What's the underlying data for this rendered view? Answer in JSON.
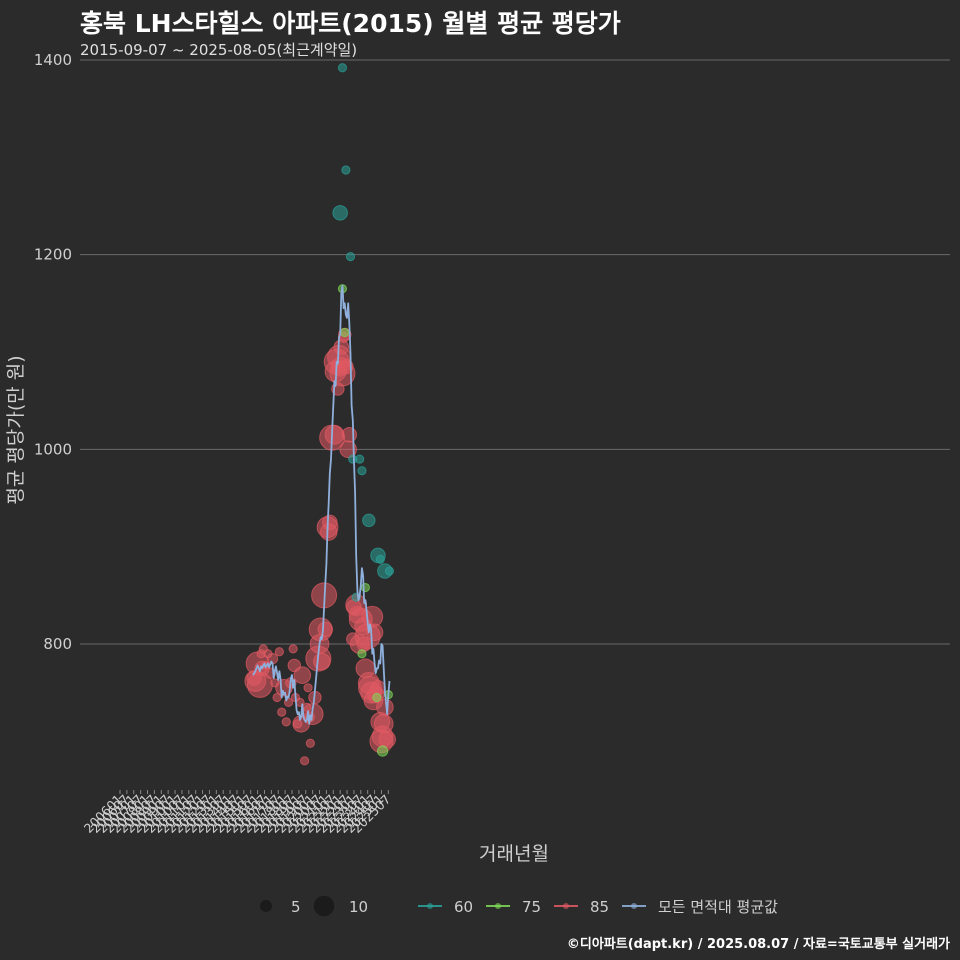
{
  "title": "홍북 LH스타힐스 아파트(2015) 월별 평균 평당가",
  "subtitle": "2015-09-07 ~ 2025-08-05(최근계약일)",
  "footer": "©디아파트(dapt.kr) / 2025.08.07 / 자료=국토교통부 실거래가",
  "colors": {
    "background": "#2b2b2b",
    "grid": "#6a6a6a",
    "s60": "#2aa198",
    "s75": "#7ed957",
    "s85": "#e05a63",
    "avg": "#8fb0dc"
  },
  "chart_data": {
    "type": "scatter",
    "xlabel": "거래년월",
    "ylabel": "평균 평당가(만 원)",
    "ylim": [
      650,
      1400
    ],
    "yticks": [
      800,
      1000,
      1200,
      1400
    ],
    "xticks": [
      "200601",
      "200607",
      "200701",
      "200707",
      "200801",
      "200807",
      "200901",
      "200907",
      "201001",
      "201007",
      "201101",
      "201107",
      "201201",
      "201207",
      "201301",
      "201307",
      "201401",
      "201407",
      "201501",
      "201507",
      "201601",
      "201607",
      "201701",
      "201707",
      "201801",
      "201807",
      "201901",
      "201907",
      "202001",
      "202007",
      "202101",
      "202107",
      "202201",
      "202207",
      "202301",
      "202307",
      "202401",
      "202407",
      "202501",
      "202507"
    ],
    "size_legend": [
      {
        "label": "5",
        "size": 5
      },
      {
        "label": "10",
        "size": 10
      }
    ],
    "color_legend": [
      {
        "label": "60",
        "key": "s60"
      },
      {
        "label": "75",
        "key": "s75"
      },
      {
        "label": "85",
        "key": "s85"
      },
      {
        "label": "모든 면적대 평균값",
        "key": "avg"
      }
    ],
    "series": [
      {
        "name": "85",
        "key": "s85",
        "points": [
          [
            "2015-10",
            765,
            5
          ],
          [
            "2015-11",
            762,
            8
          ],
          [
            "2016-01",
            780,
            9
          ],
          [
            "2016-03",
            758,
            10
          ],
          [
            "2016-04",
            790,
            2
          ],
          [
            "2016-05",
            775,
            5
          ],
          [
            "2016-06",
            795,
            2
          ],
          [
            "2016-08",
            778,
            2
          ],
          [
            "2016-10",
            790,
            2
          ],
          [
            "2016-12",
            770,
            3
          ],
          [
            "2017-02",
            785,
            3
          ],
          [
            "2017-04",
            760,
            2
          ],
          [
            "2017-06",
            745,
            2
          ],
          [
            "2017-08",
            792,
            2
          ],
          [
            "2017-10",
            730,
            2
          ],
          [
            "2017-12",
            755,
            6
          ],
          [
            "2018-02",
            720,
            2
          ],
          [
            "2018-04",
            740,
            2
          ],
          [
            "2018-06",
            760,
            3
          ],
          [
            "2018-08",
            795,
            2
          ],
          [
            "2018-09",
            778,
            4
          ],
          [
            "2018-10",
            745,
            2
          ],
          [
            "2018-12",
            718,
            2
          ],
          [
            "2019-02",
            740,
            2
          ],
          [
            "2019-03",
            718,
            6
          ],
          [
            "2019-04",
            768,
            6
          ],
          [
            "2019-06",
            680,
            2
          ],
          [
            "2019-08",
            735,
            2
          ],
          [
            "2019-09",
            755,
            2
          ],
          [
            "2019-10",
            725,
            3
          ],
          [
            "2019-11",
            698,
            2
          ],
          [
            "2020-01",
            728,
            8
          ],
          [
            "2020-03",
            745,
            4
          ],
          [
            "2020-06",
            785,
            10
          ],
          [
            "2020-07",
            800,
            7
          ],
          [
            "2020-08",
            815,
            9
          ],
          [
            "2020-09",
            782,
            6
          ],
          [
            "2020-11",
            850,
            10
          ],
          [
            "2020-12",
            815,
            5
          ],
          [
            "2021-02",
            920,
            8
          ],
          [
            "2021-03",
            915,
            6
          ],
          [
            "2021-04",
            925,
            5
          ],
          [
            "2021-06",
            1012,
            10
          ],
          [
            "2021-08",
            1015,
            7
          ],
          [
            "2021-09",
            1080,
            8
          ],
          [
            "2021-10",
            1090,
            10
          ],
          [
            "2021-11",
            1062,
            4
          ],
          [
            "2021-12",
            1095,
            9
          ],
          [
            "2022-01",
            1085,
            7
          ],
          [
            "2022-02",
            1105,
            5
          ],
          [
            "2022-03",
            1078,
            10
          ],
          [
            "2022-04",
            1115,
            3
          ],
          [
            "2022-05",
            1118,
            4
          ],
          [
            "2022-06",
            1085,
            5
          ],
          [
            "2022-08",
            1000,
            6
          ],
          [
            "2022-09",
            1015,
            5
          ],
          [
            "2022-12",
            805,
            4
          ],
          [
            "2023-01",
            838,
            5
          ],
          [
            "2023-03",
            840,
            8
          ],
          [
            "2023-04",
            830,
            6
          ],
          [
            "2023-06",
            800,
            7
          ],
          [
            "2023-07",
            825,
            9
          ],
          [
            "2023-09",
            818,
            6
          ],
          [
            "2023-10",
            800,
            5
          ],
          [
            "2023-11",
            775,
            7
          ],
          [
            "2024-01",
            808,
            10
          ],
          [
            "2024-02",
            760,
            8
          ],
          [
            "2024-03",
            755,
            9
          ],
          [
            "2024-04",
            750,
            8
          ],
          [
            "2024-05",
            828,
            8
          ],
          [
            "2024-06",
            742,
            7
          ],
          [
            "2024-07",
            812,
            6
          ],
          [
            "2024-08",
            748,
            6
          ],
          [
            "2024-10",
            755,
            5
          ],
          [
            "2024-12",
            720,
            7
          ],
          [
            "2025-01",
            700,
            9
          ],
          [
            "2025-02",
            705,
            8
          ],
          [
            "2025-03",
            718,
            7
          ],
          [
            "2025-04",
            735,
            6
          ],
          [
            "2025-06",
            702,
            6
          ]
        ]
      },
      {
        "name": "75",
        "key": "s75",
        "points": [
          [
            "2022-03",
            1165,
            2
          ],
          [
            "2022-05",
            1120,
            2
          ],
          [
            "2023-08",
            790,
            2
          ],
          [
            "2023-11",
            858,
            2
          ],
          [
            "2024-09",
            745,
            2
          ],
          [
            "2025-02",
            690,
            3
          ],
          [
            "2025-07",
            748,
            2
          ]
        ]
      },
      {
        "name": "60",
        "key": "s60",
        "points": [
          [
            "2022-01",
            1243,
            5
          ],
          [
            "2022-03",
            1392,
            2
          ],
          [
            "2022-06",
            1287,
            2
          ],
          [
            "2022-10",
            1198,
            2
          ],
          [
            "2022-12",
            990,
            2
          ],
          [
            "2023-06",
            990,
            2
          ],
          [
            "2023-08",
            978,
            2
          ],
          [
            "2023-03",
            848,
            2
          ],
          [
            "2024-02",
            927,
            4
          ],
          [
            "2024-10",
            891,
            5
          ],
          [
            "2024-12",
            887,
            2
          ],
          [
            "2025-04",
            875,
            5
          ],
          [
            "2025-08",
            875,
            2
          ]
        ]
      }
    ],
    "average_line": [
      [
        "2015-09",
        768
      ],
      [
        "2015-10",
        770
      ],
      [
        "2015-11",
        772
      ],
      [
        "2015-12",
        775
      ],
      [
        "2016-01",
        778
      ],
      [
        "2016-02",
        775
      ],
      [
        "2016-03",
        772
      ],
      [
        "2016-04",
        777
      ],
      [
        "2016-05",
        775
      ],
      [
        "2016-06",
        778
      ],
      [
        "2016-07",
        780
      ],
      [
        "2016-08",
        776
      ],
      [
        "2016-09",
        778
      ],
      [
        "2016-10",
        780
      ],
      [
        "2016-11",
        776
      ],
      [
        "2016-12",
        779
      ],
      [
        "2017-01",
        782
      ],
      [
        "2017-02",
        780
      ],
      [
        "2017-03",
        765
      ],
      [
        "2017-04",
        772
      ],
      [
        "2017-05",
        777
      ],
      [
        "2017-06",
        770
      ],
      [
        "2017-07",
        763
      ],
      [
        "2017-08",
        772
      ],
      [
        "2017-09",
        764
      ],
      [
        "2017-10",
        745
      ],
      [
        "2017-11",
        752
      ],
      [
        "2017-12",
        748
      ],
      [
        "2018-01",
        750
      ],
      [
        "2018-02",
        742
      ],
      [
        "2018-03",
        746
      ],
      [
        "2018-04",
        745
      ],
      [
        "2018-05",
        752
      ],
      [
        "2018-06",
        765
      ],
      [
        "2018-07",
        768
      ],
      [
        "2018-08",
        755
      ],
      [
        "2018-09",
        763
      ],
      [
        "2018-10",
        748
      ],
      [
        "2018-11",
        732
      ],
      [
        "2018-12",
        728
      ],
      [
        "2019-01",
        730
      ],
      [
        "2019-02",
        722
      ],
      [
        "2019-03",
        725
      ],
      [
        "2019-04",
        738
      ],
      [
        "2019-05",
        725
      ],
      [
        "2019-06",
        722
      ],
      [
        "2019-07",
        720
      ],
      [
        "2019-08",
        722
      ],
      [
        "2019-09",
        731
      ],
      [
        "2019-10",
        718
      ],
      [
        "2019-11",
        727
      ],
      [
        "2019-12",
        722
      ],
      [
        "2020-01",
        733
      ],
      [
        "2020-02",
        740
      ],
      [
        "2020-03",
        752
      ],
      [
        "2020-04",
        765
      ],
      [
        "2020-05",
        778
      ],
      [
        "2020-06",
        790
      ],
      [
        "2020-07",
        800
      ],
      [
        "2020-08",
        807
      ],
      [
        "2020-09",
        805
      ],
      [
        "2020-10",
        815
      ],
      [
        "2020-11",
        838
      ],
      [
        "2020-12",
        862
      ],
      [
        "2021-01",
        882
      ],
      [
        "2021-02",
        918
      ],
      [
        "2021-03",
        945
      ],
      [
        "2021-04",
        975
      ],
      [
        "2021-05",
        990
      ],
      [
        "2021-06",
        1018
      ],
      [
        "2021-07",
        1045
      ],
      [
        "2021-08",
        1070
      ],
      [
        "2021-09",
        1065
      ],
      [
        "2021-10",
        1090
      ],
      [
        "2021-11",
        1088
      ],
      [
        "2021-12",
        1115
      ],
      [
        "2022-01",
        1118
      ],
      [
        "2022-02",
        1160
      ],
      [
        "2022-03",
        1168
      ],
      [
        "2022-04",
        1145
      ],
      [
        "2022-05",
        1150
      ],
      [
        "2022-06",
        1138
      ],
      [
        "2022-07",
        1135
      ],
      [
        "2022-08",
        1150
      ],
      [
        "2022-09",
        1130
      ],
      [
        "2022-10",
        1098
      ],
      [
        "2022-11",
        1045
      ],
      [
        "2022-12",
        1030
      ],
      [
        "2023-01",
        990
      ],
      [
        "2023-02",
        955
      ],
      [
        "2023-03",
        890
      ],
      [
        "2023-04",
        855
      ],
      [
        "2023-05",
        845
      ],
      [
        "2023-06",
        850
      ],
      [
        "2023-07",
        860
      ],
      [
        "2023-08",
        878
      ],
      [
        "2023-09",
        870
      ],
      [
        "2023-10",
        842
      ],
      [
        "2023-11",
        845
      ],
      [
        "2023-12",
        835
      ],
      [
        "2024-01",
        822
      ],
      [
        "2024-02",
        812
      ],
      [
        "2024-03",
        820
      ],
      [
        "2024-04",
        815
      ],
      [
        "2024-05",
        790
      ],
      [
        "2024-06",
        795
      ],
      [
        "2024-07",
        780
      ],
      [
        "2024-08",
        770
      ],
      [
        "2024-09",
        775
      ],
      [
        "2024-10",
        775
      ],
      [
        "2024-11",
        783
      ],
      [
        "2024-12",
        780
      ],
      [
        "2025-01",
        800
      ],
      [
        "2025-02",
        798
      ],
      [
        "2025-03",
        775
      ],
      [
        "2025-04",
        752
      ],
      [
        "2025-05",
        740
      ],
      [
        "2025-06",
        728
      ],
      [
        "2025-07",
        748
      ],
      [
        "2025-08",
        762
      ]
    ]
  }
}
